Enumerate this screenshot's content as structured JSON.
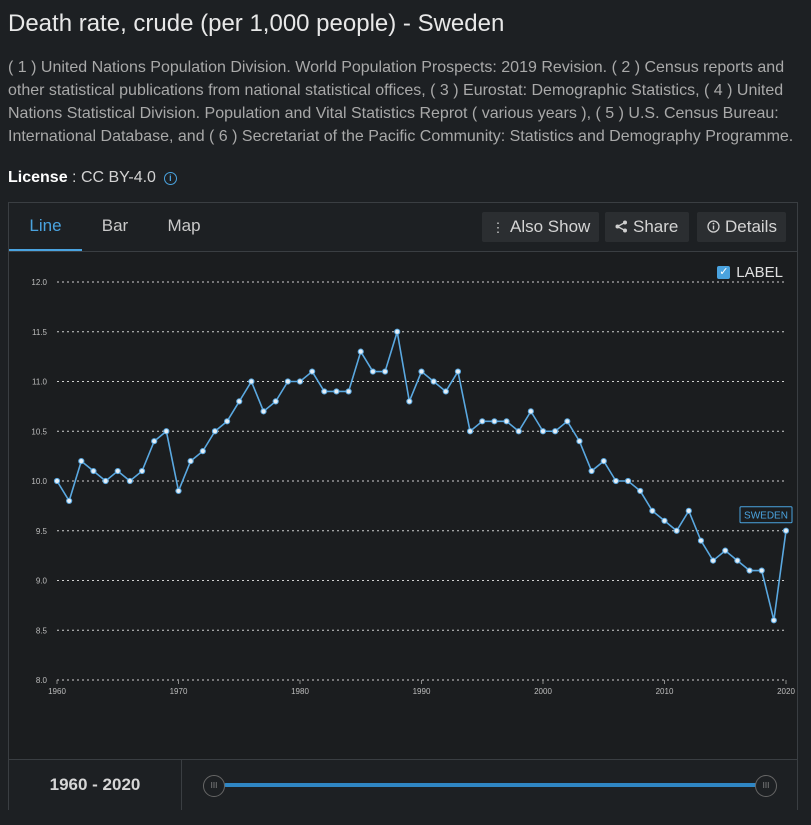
{
  "page": {
    "title": "Death rate, crude (per 1,000 people) - Sweden",
    "sources": "( 1 ) United Nations Population Division. World Population Prospects: 2019 Revision. ( 2 ) Census reports and other statistical publications from national statistical offices, ( 3 ) Eurostat: Demographic Statistics, ( 4 ) United Nations Statistical Division. Population and Vital Statistics Reprot ( various years ), ( 5 ) U.S. Census Bureau: International Database, and ( 6 ) Secretariat of the Pacific Community: Statistics and Demography Programme.",
    "license_label": "License",
    "license_sep": " : ",
    "license_value": "CC BY-4.0"
  },
  "tabs": [
    "Line",
    "Bar",
    "Map"
  ],
  "toolbar": {
    "also_show": "Also Show",
    "share": "Share",
    "details": "Details"
  },
  "label_toggle": "LABEL",
  "range": {
    "start": "1960",
    "sep": " - ",
    "end": "2020"
  },
  "colors": {
    "line": "#5aa8e0",
    "accent": "#4aa3df",
    "point_fill": "#e6eef5"
  },
  "chart_data": {
    "type": "line",
    "title": "",
    "xlabel": "",
    "ylabel": "",
    "xlim": [
      1960,
      2020
    ],
    "ylim": [
      8.0,
      12.0
    ],
    "yticks": [
      "8.0",
      "8.5",
      "9.0",
      "9.5",
      "10.0",
      "10.5",
      "11.0",
      "11.5",
      "12.0"
    ],
    "xticks": [
      "1960",
      "1970",
      "1980",
      "1990",
      "2000",
      "2010",
      "2020"
    ],
    "grid": true,
    "end_label": "SWEDEN",
    "series": [
      {
        "name": "SWEDEN",
        "x": [
          1960,
          1961,
          1962,
          1963,
          1964,
          1965,
          1966,
          1967,
          1968,
          1969,
          1970,
          1971,
          1972,
          1973,
          1974,
          1975,
          1976,
          1977,
          1978,
          1979,
          1980,
          1981,
          1982,
          1983,
          1984,
          1985,
          1986,
          1987,
          1988,
          1989,
          1990,
          1991,
          1992,
          1993,
          1994,
          1995,
          1996,
          1997,
          1998,
          1999,
          2000,
          2001,
          2002,
          2003,
          2004,
          2005,
          2006,
          2007,
          2008,
          2009,
          2010,
          2011,
          2012,
          2013,
          2014,
          2015,
          2016,
          2017,
          2018,
          2019,
          2020
        ],
        "values": [
          10.0,
          9.8,
          10.2,
          10.1,
          10.0,
          10.1,
          10.0,
          10.1,
          10.4,
          10.5,
          9.9,
          10.2,
          10.3,
          10.5,
          10.6,
          10.8,
          11.0,
          10.7,
          10.8,
          11.0,
          11.0,
          11.1,
          10.9,
          10.9,
          10.9,
          11.3,
          11.1,
          11.1,
          11.5,
          10.8,
          11.1,
          11.0,
          10.9,
          11.1,
          10.5,
          10.6,
          10.6,
          10.6,
          10.5,
          10.7,
          10.5,
          10.5,
          10.6,
          10.4,
          10.1,
          10.2,
          10.0,
          10.0,
          9.9,
          9.7,
          9.6,
          9.5,
          9.7,
          9.4,
          9.2,
          9.3,
          9.2,
          9.1,
          9.1,
          8.6,
          9.5
        ]
      }
    ]
  }
}
